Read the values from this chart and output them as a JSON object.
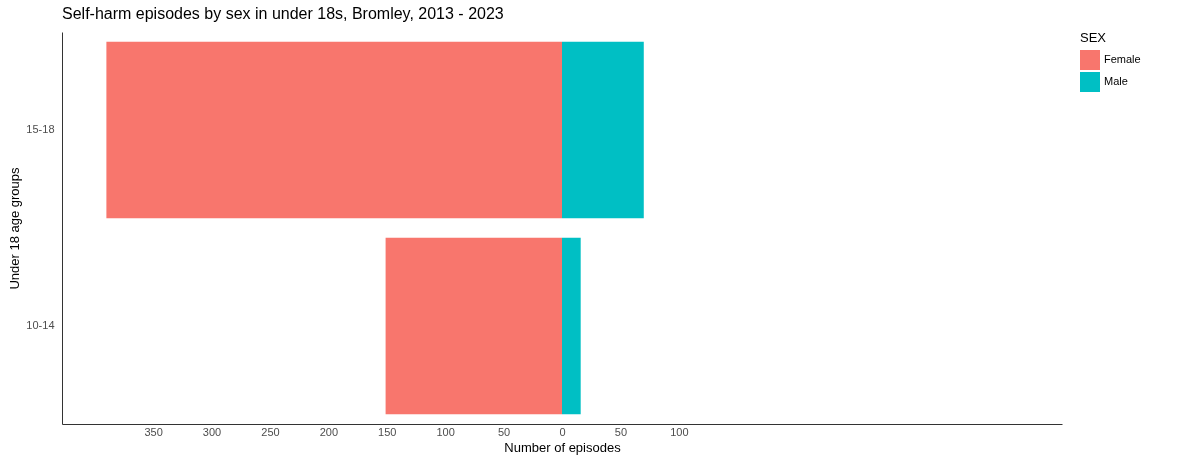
{
  "chart_data": {
    "type": "bar",
    "orientation": "horizontal",
    "stacked": true,
    "title": "Self-harm episodes by sex in under 18s, Bromley, 2013 - 2023",
    "xlabel": "Number of episodes",
    "ylabel": "Under 18 age groups",
    "legend_title": "SEX",
    "legend": "right",
    "categories": [
      "15-18",
      "10-14"
    ],
    "series": [
      {
        "name": "Female",
        "color": "#f8766d",
        "values": [
          -390,
          -151
        ]
      },
      {
        "name": "Male",
        "color": "#00bfc4",
        "values": [
          70,
          16
        ]
      }
    ],
    "xlim": [
      -428,
      428
    ],
    "xticks": [
      {
        "value": -350,
        "label": "350"
      },
      {
        "value": -300,
        "label": "300"
      },
      {
        "value": -250,
        "label": "250"
      },
      {
        "value": -200,
        "label": "200"
      },
      {
        "value": -150,
        "label": "150"
      },
      {
        "value": -100,
        "label": "100"
      },
      {
        "value": -50,
        "label": "50"
      },
      0,
      50,
      100
    ]
  }
}
